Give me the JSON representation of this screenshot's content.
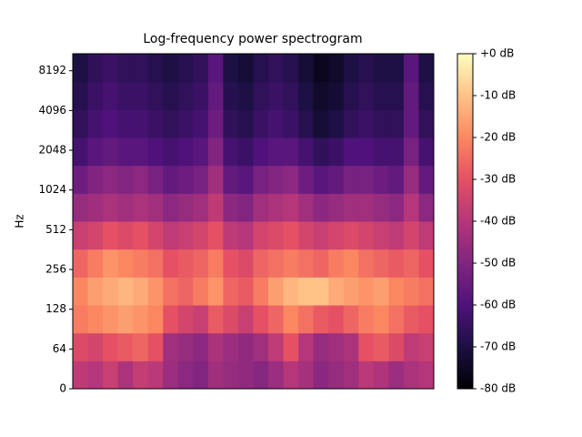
{
  "chart_data": {
    "type": "spectrogram",
    "title": "Log-frequency power spectrogram",
    "y_label": "Hz",
    "yscale": "symlog",
    "linthresh": 64,
    "ylim": [
      0,
      11025
    ],
    "yticks": [
      0,
      64,
      128,
      256,
      512,
      1024,
      2048,
      4096,
      8192
    ],
    "colorbar": {
      "lim": [
        -80,
        0
      ],
      "ticks": [
        {
          "value": 0,
          "label": "+0 dB"
        },
        {
          "value": -10,
          "label": "-10 dB"
        },
        {
          "value": -20,
          "label": "-20 dB"
        },
        {
          "value": -30,
          "label": "-30 dB"
        },
        {
          "value": -40,
          "label": "-40 dB"
        },
        {
          "value": -50,
          "label": "-50 dB"
        },
        {
          "value": -60,
          "label": "-60 dB"
        },
        {
          "value": -70,
          "label": "-70 dB"
        },
        {
          "value": -80,
          "label": "-80 dB"
        }
      ]
    },
    "colormap": [
      "#000004",
      "#1c1044",
      "#4f127b",
      "#812581",
      "#b5367a",
      "#e55064",
      "#fb8761",
      "#fec287",
      "#fcfdbf"
    ],
    "values": [
      [
        -38,
        -40,
        -36,
        -42,
        -37,
        -39,
        -45,
        -48,
        -50,
        -44,
        -46,
        -47,
        -49,
        -45,
        -40,
        -43,
        -48,
        -46,
        -44,
        -39,
        -41,
        -45,
        -42,
        -40
      ],
      [
        -32,
        -34,
        -30,
        -28,
        -26,
        -30,
        -44,
        -46,
        -48,
        -42,
        -45,
        -47,
        -44,
        -38,
        -30,
        -40,
        -46,
        -44,
        -42,
        -30,
        -28,
        -32,
        -38,
        -36
      ],
      [
        -22,
        -20,
        -18,
        -16,
        -18,
        -20,
        -30,
        -34,
        -36,
        -28,
        -32,
        -36,
        -30,
        -26,
        -20,
        -24,
        -28,
        -30,
        -26,
        -22,
        -20,
        -24,
        -28,
        -30
      ],
      [
        -20,
        -16,
        -14,
        -12,
        -14,
        -18,
        -24,
        -26,
        -22,
        -18,
        -26,
        -28,
        -22,
        -16,
        -12,
        -10,
        -10,
        -14,
        -16,
        -18,
        -16,
        -20,
        -22,
        -24
      ],
      [
        -26,
        -22,
        -18,
        -20,
        -22,
        -24,
        -30,
        -28,
        -26,
        -22,
        -30,
        -32,
        -26,
        -24,
        -22,
        -24,
        -26,
        -22,
        -20,
        -24,
        -26,
        -28,
        -26,
        -30
      ],
      [
        -36,
        -34,
        -30,
        -32,
        -30,
        -34,
        -38,
        -36,
        -34,
        -30,
        -38,
        -40,
        -34,
        -32,
        -30,
        -34,
        -36,
        -34,
        -32,
        -34,
        -36,
        -38,
        -34,
        -38
      ],
      [
        -46,
        -44,
        -42,
        -44,
        -42,
        -44,
        -48,
        -46,
        -44,
        -38,
        -48,
        -50,
        -44,
        -42,
        -40,
        -44,
        -48,
        -46,
        -44,
        -44,
        -46,
        -48,
        -40,
        -48
      ],
      [
        -54,
        -50,
        -48,
        -50,
        -48,
        -52,
        -56,
        -54,
        -52,
        -44,
        -56,
        -58,
        -52,
        -50,
        -48,
        -54,
        -58,
        -56,
        -52,
        -52,
        -54,
        -56,
        -46,
        -56
      ],
      [
        -62,
        -58,
        -56,
        -58,
        -58,
        -60,
        -62,
        -60,
        -58,
        -50,
        -62,
        -64,
        -60,
        -58,
        -58,
        -62,
        -66,
        -64,
        -60,
        -60,
        -62,
        -62,
        -52,
        -62
      ],
      [
        -66,
        -62,
        -60,
        -62,
        -62,
        -64,
        -66,
        -64,
        -62,
        -54,
        -66,
        -68,
        -64,
        -62,
        -64,
        -68,
        -72,
        -70,
        -66,
        -64,
        -66,
        -66,
        -56,
        -66
      ],
      [
        -68,
        -64,
        -62,
        -64,
        -64,
        -66,
        -68,
        -66,
        -64,
        -56,
        -68,
        -70,
        -66,
        -64,
        -66,
        -70,
        -74,
        -72,
        -68,
        -66,
        -68,
        -68,
        -56,
        -68
      ],
      [
        -70,
        -66,
        -64,
        -66,
        -66,
        -68,
        -70,
        -68,
        -66,
        -58,
        -70,
        -72,
        -68,
        -66,
        -68,
        -72,
        -76,
        -74,
        -70,
        -68,
        -70,
        -70,
        -58,
        -70
      ]
    ]
  }
}
